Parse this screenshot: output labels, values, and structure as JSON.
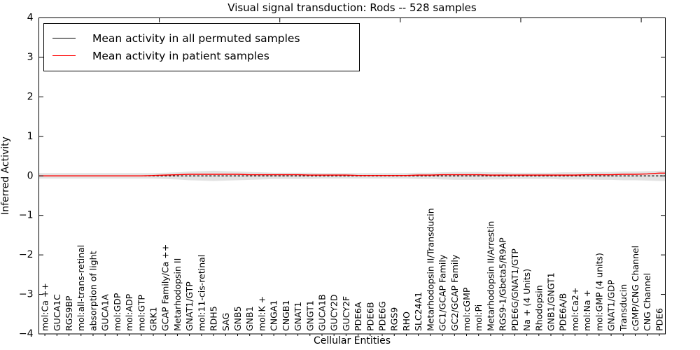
{
  "figure": {
    "title": "Visual signal transduction: Rods -- 528 samples",
    "xlabel": "Cellular Entities",
    "ylabel": "Inferred Activity"
  },
  "colors": {
    "permuted_line": "#000000",
    "patient_line": "#ff0000",
    "band_fill": "#dedede",
    "axis": "#000000"
  },
  "chart_data": {
    "type": "line",
    "title": "Visual signal transduction: Rods -- 528 samples",
    "xlabel": "Cellular Entities",
    "ylabel": "Inferred Activity",
    "ylim": [
      -4,
      4
    ],
    "ytick_labels": [
      "4",
      "3",
      "2",
      "1",
      "0",
      "−1",
      "−2",
      "−3",
      "−4"
    ],
    "ytick_values": [
      4,
      3,
      2,
      1,
      0,
      -1,
      -2,
      -3,
      -4
    ],
    "grid": false,
    "legend_position": "upper left",
    "categories": [
      "mol:Ca ++",
      "GUCA1C",
      "RGS9BP",
      "mol:all-trans-retinal",
      "absorption of light",
      "GUCA1A",
      "mol:GDP",
      "mol:ADP",
      "mol:GTP",
      "GRK1",
      "GCAP Family/Ca ++",
      "Metarhodopsin II",
      "GNAT1/GTP",
      "mol:11-cis-retinal",
      "RDH5",
      "SAG",
      "GNB5",
      "GNB1",
      "mol:K +",
      "CNGA1",
      "CNGB1",
      "GNAT1",
      "GNGT1",
      "GUCA1B",
      "GUCY2D",
      "GUCY2F",
      "PDE6A",
      "PDE6B",
      "PDE6G",
      "RGS9",
      "RHO",
      "SLC24A1",
      "Metarhodopsin II/Transducin",
      "GC1/GCAP Family",
      "GC2/GCAP Family",
      "mol:cGMP",
      "mol:Pi",
      "Metarhodopsin II/Arrestin",
      "RGS9-1/Gbeta5/R9AP",
      "PDE6G/GNAT1/GTP",
      "Na + (4 Units)",
      "Rhodopsin",
      "GNB1/GNGT1",
      "PDE6A/B",
      "mol:Ca2+",
      "mol:Na +",
      "mol:GMP (4 units)",
      "GNAT1/GDP",
      "Transducin",
      "cGMP/CNG Channel",
      "CNG Channel",
      "PDE6"
    ],
    "series": [
      {
        "name": "Mean activity in all permuted samples",
        "color": "#000000",
        "style": "dashed",
        "values": [
          0,
          0,
          0,
          0,
          0,
          0,
          0,
          0,
          0,
          0,
          0,
          0,
          0,
          0,
          0,
          0,
          0,
          0,
          0,
          0,
          0,
          0,
          0,
          0,
          0,
          0,
          0,
          0,
          0,
          0,
          0,
          0,
          0,
          0,
          0,
          0,
          0,
          0,
          0,
          0,
          0,
          0,
          0,
          0,
          0,
          0,
          0,
          0,
          0,
          0,
          0,
          0
        ]
      },
      {
        "name": "Mean activity in patient samples",
        "color": "#ff0000",
        "style": "solid",
        "values": [
          0,
          0,
          0,
          0,
          0,
          0,
          0,
          0,
          0,
          0.01,
          0.02,
          0.03,
          0.04,
          0.04,
          0.04,
          0.04,
          0.04,
          0.03,
          0.03,
          0.03,
          0.03,
          0.03,
          0.02,
          0.02,
          0.02,
          0.02,
          0.01,
          0.01,
          0.01,
          0.01,
          0.01,
          0.02,
          0.02,
          0.03,
          0.03,
          0.03,
          0.03,
          0.02,
          0.02,
          0.02,
          0.02,
          0.02,
          0.02,
          0.02,
          0.02,
          0.03,
          0.03,
          0.03,
          0.04,
          0.04,
          0.05,
          0.07
        ]
      }
    ],
    "band": {
      "name": "permuted sample spread",
      "color": "#dedede",
      "center": 0,
      "half_widths": [
        0.07,
        0.07,
        0.07,
        0.07,
        0.07,
        0.07,
        0.07,
        0.07,
        0.07,
        0.07,
        0.08,
        0.09,
        0.11,
        0.12,
        0.13,
        0.12,
        0.11,
        0.1,
        0.09,
        0.08,
        0.08,
        0.08,
        0.08,
        0.07,
        0.07,
        0.07,
        0.07,
        0.07,
        0.07,
        0.07,
        0.07,
        0.08,
        0.08,
        0.09,
        0.1,
        0.1,
        0.1,
        0.09,
        0.09,
        0.08,
        0.08,
        0.08,
        0.08,
        0.09,
        0.09,
        0.09,
        0.1,
        0.1,
        0.11,
        0.11,
        0.12,
        0.13
      ]
    },
    "top_axis_tick_positions": [
      10,
      20,
      30,
      40,
      50
    ]
  }
}
